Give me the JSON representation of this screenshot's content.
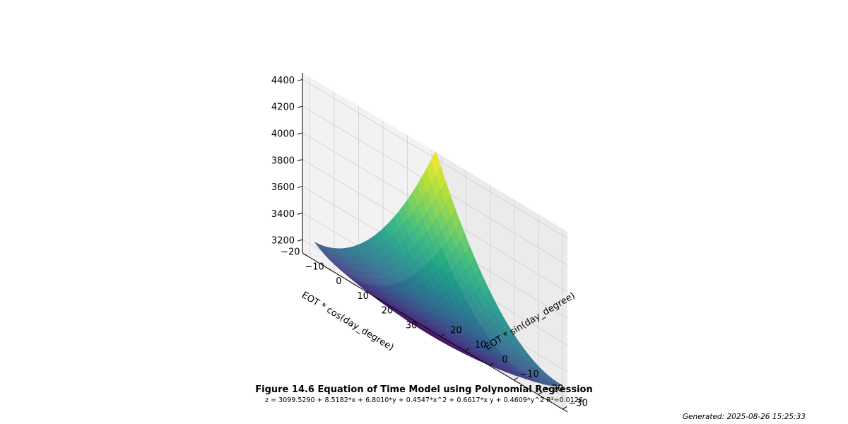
{
  "figure": {
    "title": "Figure 14.6 Equation of Time Model using Polynomial Regression",
    "equation": "z = 3099.5290 + 8.5182*x + 6.8010*y + 0.4547*x^2 + 0.6617*x y + 0.4609*y^2  R²=0.0126",
    "generated": "Generated: 2025-08-26 15:25:33"
  },
  "chart_data": {
    "type": "surface",
    "colormap": "viridis",
    "grid": true,
    "xlabel": "EOT * sin(day_degree)",
    "ylabel": "EOT * cos(day_degree)",
    "zlabel": "",
    "x_ticks": [
      "−30",
      "−20",
      "−10",
      "0",
      "10",
      "20"
    ],
    "y_ticks": [
      "−20",
      "−10",
      "0",
      "10",
      "20",
      "30"
    ],
    "z_ticks": [
      "3200",
      "3400",
      "3600",
      "3800",
      "4000",
      "4200",
      "4400"
    ],
    "xlim": [
      -32,
      23
    ],
    "ylim": [
      -22,
      32
    ],
    "zlim": [
      3100,
      4450
    ],
    "x_range": [
      -32,
      20
    ],
    "y_range": [
      -20,
      30
    ],
    "coefficients": {
      "const": 3099.529,
      "x": 8.5182,
      "y": 6.801,
      "x2": 0.4547,
      "xy": 0.6617,
      "y2": 0.4609
    },
    "r_squared": 0.0126
  }
}
